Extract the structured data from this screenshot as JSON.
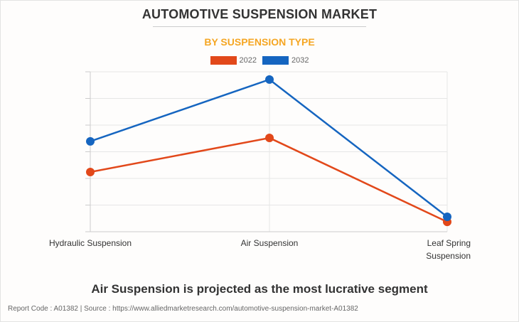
{
  "title": "AUTOMOTIVE SUSPENSION MARKET",
  "subtitle": "BY SUSPENSION TYPE",
  "caption": "Air Suspension is projected as the most lucrative segment",
  "footer": "Report Code : A01382  |  Source : https://www.alliedmarketresearch.com/automotive-suspension-market-A01382",
  "chart_data": {
    "type": "line",
    "categories": [
      "Hydraulic Suspension",
      "Air Suspension",
      "Leaf Spring Suspension"
    ],
    "category_lines": [
      [
        "Hydraulic Suspension"
      ],
      [
        "Air Suspension"
      ],
      [
        "Leaf Spring",
        "Suspension"
      ]
    ],
    "series": [
      {
        "name": "2022",
        "color": "#e2481a",
        "values": [
          2.24,
          3.52,
          0.37
        ]
      },
      {
        "name": "2032",
        "color": "#1565c0",
        "values": [
          3.39,
          5.71,
          0.56
        ]
      }
    ],
    "ylim": [
      0,
      6
    ],
    "yticks_count": 6,
    "y_tick_labels_shown": false,
    "grid": true,
    "legend_position": "top-center"
  }
}
